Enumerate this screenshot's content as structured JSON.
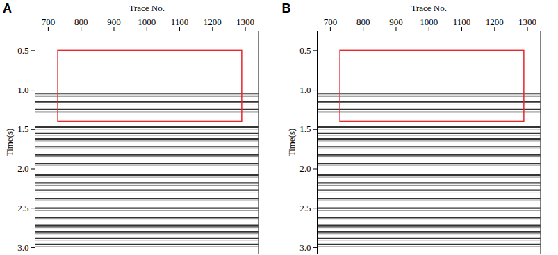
{
  "chart_data": [
    {
      "type": "seismic section",
      "title": "A",
      "x_label": "Trace No.",
      "y_label": "Time(s)",
      "xlim": [
        660,
        1340
      ],
      "xticks": [
        700,
        800,
        900,
        1000,
        1100,
        1200,
        1300
      ],
      "ylim": [
        0.25,
        3.08
      ],
      "yticks": [
        {
          "value": 0.5,
          "label": "0.5"
        },
        {
          "value": 1,
          "label": "1.0"
        },
        {
          "value": 1.5,
          "label": "1.5"
        },
        {
          "value": 2,
          "label": "2.0"
        },
        {
          "value": 2.5,
          "label": "2.5"
        },
        {
          "value": 3,
          "label": "3.0"
        }
      ],
      "box": {
        "x": [
          730,
          1290
        ],
        "y": [
          0.5,
          1.4
        ],
        "color": "#e8262b"
      },
      "reflectors": [
        1.05,
        1.15,
        1.25,
        1.47,
        1.55,
        1.62,
        1.72,
        1.82,
        1.93,
        2.08,
        2.18,
        2.27,
        2.38,
        2.5,
        2.62,
        2.72,
        2.8,
        2.88,
        2.96
      ]
    },
    {
      "type": "seismic section",
      "title": "B",
      "x_label": "Trace No.",
      "y_label": "Time(s)",
      "xlim": [
        660,
        1340
      ],
      "xticks": [
        700,
        800,
        900,
        1000,
        1100,
        1200,
        1300
      ],
      "ylim": [
        0.25,
        3.08
      ],
      "yticks": [
        {
          "value": 0.5,
          "label": "0.5"
        },
        {
          "value": 1,
          "label": "1.0"
        },
        {
          "value": 1.5,
          "label": "1.5"
        },
        {
          "value": 2,
          "label": "2.0"
        },
        {
          "value": 2.5,
          "label": "2.5"
        },
        {
          "value": 3,
          "label": "3.0"
        }
      ],
      "box": {
        "x": [
          730,
          1290
        ],
        "y": [
          0.5,
          1.4
        ],
        "color": "#e8262b"
      },
      "reflectors": [
        1.05,
        1.15,
        1.25,
        1.47,
        1.55,
        1.62,
        1.72,
        1.82,
        1.93,
        2.08,
        2.18,
        2.27,
        2.38,
        2.5,
        2.62,
        2.72,
        2.8,
        2.88,
        2.96
      ]
    }
  ]
}
